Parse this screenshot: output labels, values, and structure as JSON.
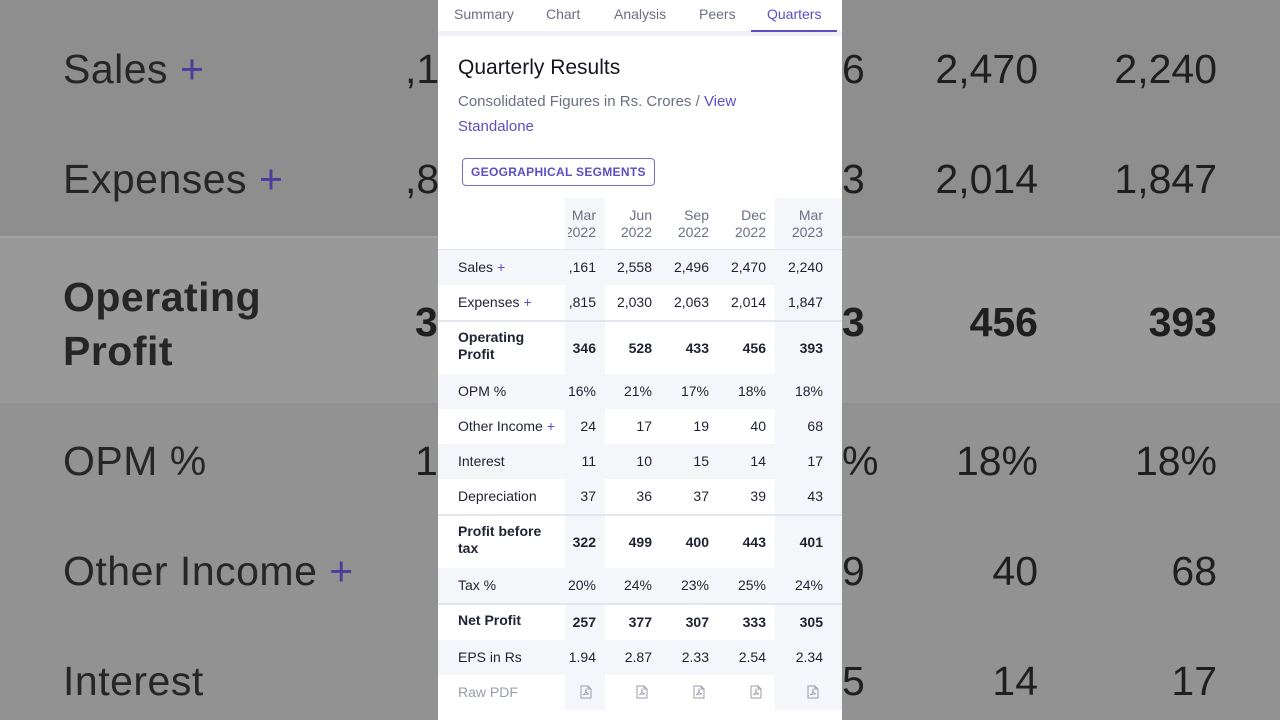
{
  "tabs": [
    "Summary",
    "Chart",
    "Analysis",
    "Peers",
    "Quarters"
  ],
  "active_tab": "Quarters",
  "section": {
    "title": "Quarterly Results",
    "subtitle_prefix": "Consolidated Figures in Rs. Crores / ",
    "view_link": "View Standalone",
    "segments_button": "GEOGRAPHICAL SEGMENTS"
  },
  "columns": [
    {
      "month": "Mar",
      "year": "2022"
    },
    {
      "month": "Jun",
      "year": "2022"
    },
    {
      "month": "Sep",
      "year": "2022"
    },
    {
      "month": "Dec",
      "year": "2022"
    },
    {
      "month": "Mar",
      "year": "2023"
    }
  ],
  "rows": [
    {
      "label": "Sales",
      "expandable": true,
      "bold": false,
      "values": ",161|2,558|2,496|2,470|2,240"
    },
    {
      "label": "Expenses",
      "expandable": true,
      "bold": false,
      "values": ",815|2,030|2,063|2,014|1,847"
    },
    {
      "label": "Operating Profit",
      "expandable": false,
      "bold": true,
      "values": "346|528|433|456|393"
    },
    {
      "label": "OPM %",
      "expandable": false,
      "bold": false,
      "values": "16%|21%|17%|18%|18%"
    },
    {
      "label": "Other Income",
      "expandable": true,
      "bold": false,
      "values": "24|17|19|40|68"
    },
    {
      "label": "Interest",
      "expandable": false,
      "bold": false,
      "values": "11|10|15|14|17"
    },
    {
      "label": "Depreciation",
      "expandable": false,
      "bold": false,
      "values": "37|36|37|39|43"
    },
    {
      "label": "Profit before tax",
      "expandable": false,
      "bold": true,
      "values": "322|499|400|443|401"
    },
    {
      "label": "Tax %",
      "expandable": false,
      "bold": false,
      "values": "20%|24%|23%|25%|24%"
    },
    {
      "label": "Net Profit",
      "expandable": false,
      "bold": true,
      "values": "257|377|307|333|305"
    },
    {
      "label": "EPS in Rs",
      "expandable": false,
      "bold": false,
      "values": "1.94|2.87|2.33|2.54|2.34"
    }
  ],
  "raw_pdf_label": "Raw PDF",
  "pdf_icon": "pdf-file-icon",
  "background": {
    "plus": "+",
    "sales_label": "Sales",
    "expenses_label": "Expenses",
    "op_label_1": "Operating",
    "op_label_2": "Profit",
    "opm_label": "OPM %",
    "other_income_label": "Other Income",
    "interest_label": "Interest",
    "sales_left": ",1",
    "expenses_left": ",8",
    "op_left": "3",
    "opm_left": "1",
    "sales_r1": "6",
    "sales_r2": "2,470",
    "sales_r3": "2,240",
    "exp_r1": "3",
    "exp_r2": "2,014",
    "exp_r3": "1,847",
    "op_r1": "3",
    "op_r2": "456",
    "op_r3": "393",
    "opm_r1": "%",
    "opm_r2": "18%",
    "opm_r3": "18%",
    "oi_r1": "9",
    "oi_r2": "40",
    "oi_r3": "68",
    "int_r1": "5",
    "int_r2": "14",
    "int_r3": "17"
  },
  "colors": {
    "accent": "#5b4ec2",
    "muted_text": "#6b6f80",
    "stripe": "#f5f6fa"
  }
}
